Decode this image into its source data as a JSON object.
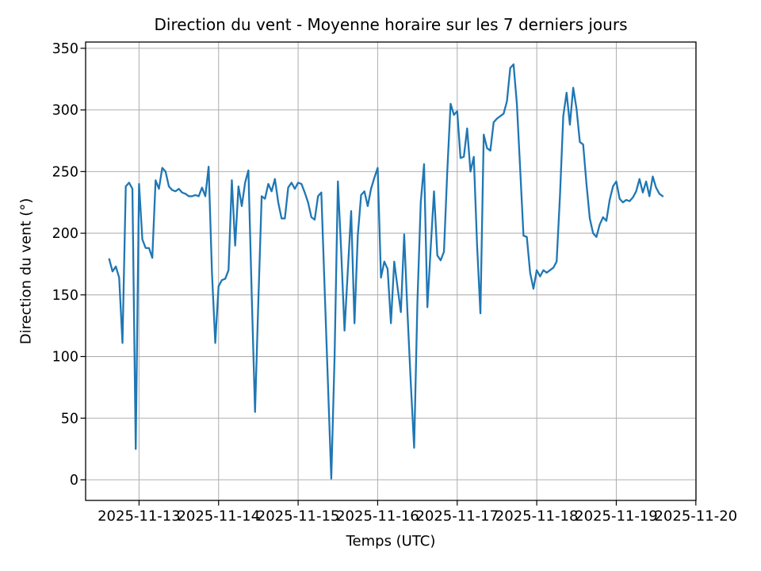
{
  "chart_data": {
    "type": "line",
    "title": "Direction du vent - Moyenne horaire sur les 7 derniers jours",
    "xlabel": "Temps (UTC)",
    "ylabel": "Direction du vent (°)",
    "x_tick_labels": [
      "2025-11-13",
      "2025-11-14",
      "2025-11-15",
      "2025-11-16",
      "2025-11-17",
      "2025-11-18",
      "2025-11-19",
      "2025-11-20"
    ],
    "y_ticks": [
      0,
      50,
      100,
      150,
      200,
      250,
      300,
      350
    ],
    "y_tick_range": [
      0,
      350
    ],
    "x_start": "2025-11-12 15:00",
    "x_interval_hours": 1,
    "grid": true,
    "legend": "none",
    "line_color": "#1f77b4",
    "grid_color": "#b0b0b0",
    "series": [
      {
        "name": "Direction du vent (°)",
        "values": [
          179,
          169,
          173,
          164,
          111,
          238,
          241,
          236,
          25,
          240,
          195,
          188,
          188,
          180,
          243,
          236,
          253,
          250,
          238,
          235,
          234,
          236,
          233,
          232,
          230,
          230,
          231,
          230,
          237,
          230,
          254,
          168,
          111,
          157,
          162,
          163,
          170,
          243,
          190,
          238,
          222,
          241,
          251,
          150,
          55,
          145,
          230,
          228,
          240,
          234,
          244,
          225,
          212,
          212,
          237,
          241,
          236,
          241,
          240,
          233,
          225,
          213,
          211,
          230,
          233,
          155,
          78,
          1,
          100,
          242,
          185,
          121,
          170,
          218,
          127,
          198,
          231,
          234,
          222,
          236,
          245,
          253,
          164,
          177,
          171,
          127,
          177,
          156,
          136,
          199,
          135,
          78,
          26,
          145,
          225,
          256,
          140,
          188,
          234,
          182,
          178,
          185,
          250,
          305,
          296,
          299,
          261,
          262,
          285,
          250,
          262,
          190,
          135,
          280,
          269,
          267,
          290,
          293,
          295,
          297,
          307,
          334,
          337,
          305,
          252,
          198,
          197,
          168,
          155,
          170,
          165,
          170,
          168,
          170,
          172,
          177,
          230,
          295,
          314,
          288,
          318,
          301,
          274,
          272,
          240,
          212,
          200,
          197,
          207,
          213,
          210,
          227,
          238,
          242,
          228,
          225,
          227,
          226,
          229,
          234,
          244,
          233,
          242,
          230,
          246,
          237,
          232,
          230
        ]
      }
    ]
  }
}
